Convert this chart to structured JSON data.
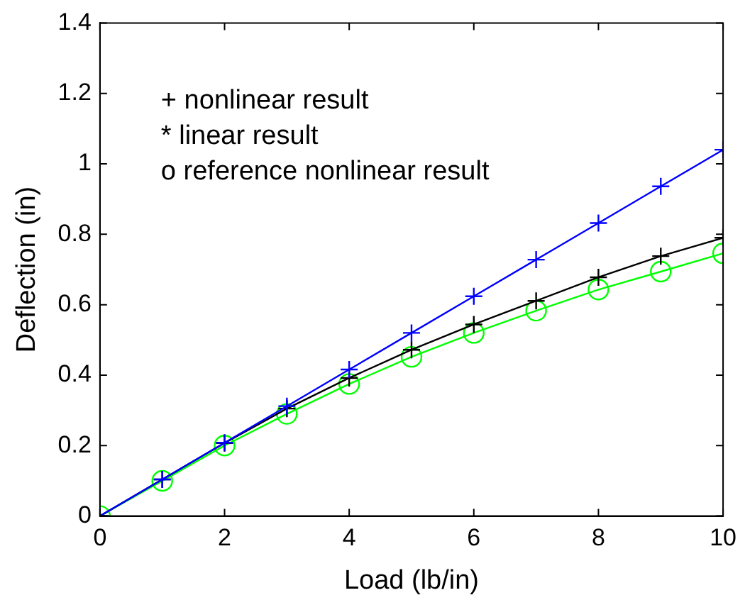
{
  "chart_data": {
    "type": "line",
    "xlabel": "Load (lb/in)",
    "ylabel": "Deflection (in)",
    "x": [
      0,
      1,
      2,
      3,
      4,
      5,
      6,
      7,
      8,
      9,
      10
    ],
    "series": [
      {
        "color": "#0000ff",
        "marker": "cross",
        "values": [
          0,
          0.104,
          0.208,
          0.312,
          0.416,
          0.52,
          0.624,
          0.728,
          0.832,
          0.936,
          1.04
        ]
      },
      {
        "color": "#000000",
        "marker": "cross",
        "values": [
          0,
          0.104,
          0.207,
          0.305,
          0.392,
          0.472,
          0.544,
          0.611,
          0.678,
          0.738,
          0.79
        ]
      },
      {
        "color": "#00ff00",
        "marker": "circle",
        "values": [
          0,
          0.1,
          0.2,
          0.29,
          0.375,
          0.452,
          0.52,
          0.583,
          0.643,
          0.694,
          0.746
        ]
      }
    ],
    "xlim": [
      0,
      10
    ],
    "xticks": [
      0,
      2,
      4,
      6,
      8,
      10
    ],
    "ylim": [
      0,
      1.4
    ],
    "yticks": [
      0,
      0.2,
      0.4,
      0.6,
      0.8,
      1,
      1.2,
      1.4
    ],
    "grid": false,
    "legend": false,
    "annotations": [
      "+ nonlinear result",
      "* linear result",
      "o reference nonlinear result"
    ]
  }
}
